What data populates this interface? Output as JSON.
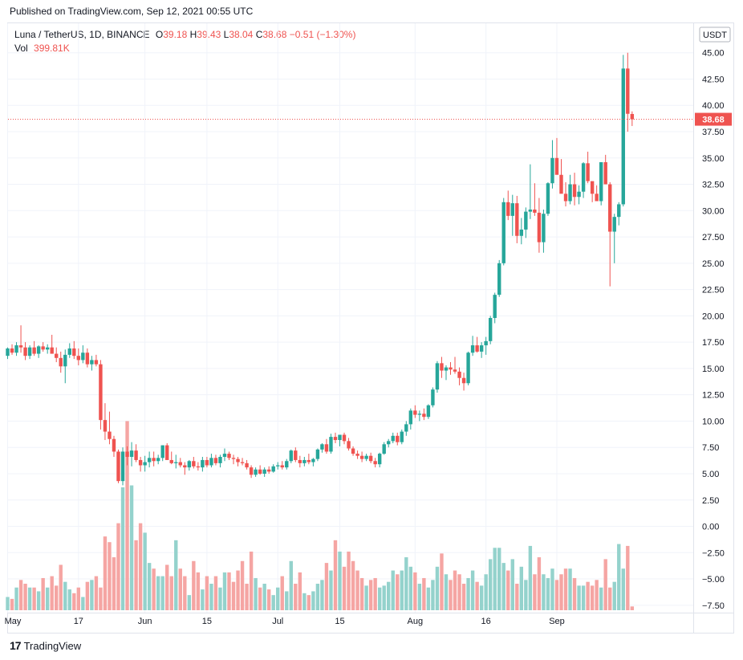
{
  "header": {
    "published": "Published on TradingView.com, Sep 12, 2021 00:55 UTC"
  },
  "legend": {
    "symbol": "Luna / TetherUS, 1D, BINANCE",
    "o_label": "O",
    "o": "39.18",
    "h_label": "H",
    "h": "39.43",
    "l_label": "L",
    "l": "38.04",
    "c_label": "C",
    "c": "38.68",
    "change": "−0.51 (−1.30%)",
    "vol_label": "Vol",
    "vol": "399.81K"
  },
  "footer": {
    "logo": "17",
    "brand": "TradingView"
  },
  "colors": {
    "up": "#26a69a",
    "down": "#ef5350",
    "vol_up": "#94d2cc",
    "vol_down": "#f5a5a3"
  },
  "chart_data": {
    "type": "candlestick",
    "currency_badge": "USDT",
    "last_price": "38.68",
    "y_ticks": [
      "45.00",
      "42.50",
      "40.00",
      "37.50",
      "35.00",
      "32.50",
      "30.00",
      "27.50",
      "25.00",
      "22.50",
      "20.00",
      "17.50",
      "15.00",
      "12.50",
      "10.00",
      "7.50",
      "5.00",
      "2.50",
      "0.00",
      "−2.50",
      "−5.00",
      "−7.50"
    ],
    "y_tick_values": [
      45,
      42.5,
      40,
      37.5,
      35,
      32.5,
      30,
      27.5,
      25,
      22.5,
      20,
      17.5,
      15,
      12.5,
      10,
      7.5,
      5,
      2.5,
      0,
      -2.5,
      -5,
      -7.5
    ],
    "y_range": [
      -8.2,
      47.8
    ],
    "x_labels": [
      {
        "label": "May",
        "day": 0
      },
      {
        "label": "17",
        "day": 16
      },
      {
        "label": "Jun",
        "day": 31
      },
      {
        "label": "15",
        "day": 45
      },
      {
        "label": "Jul",
        "day": 61
      },
      {
        "label": "15",
        "day": 75
      },
      {
        "label": "Aug",
        "day": 92
      },
      {
        "label": "16",
        "day": 108
      },
      {
        "label": "Sep",
        "day": 124
      }
    ],
    "candles": [
      [
        16.2,
        17.0,
        15.9,
        16.9
      ],
      [
        16.9,
        17.3,
        16.3,
        16.5
      ],
      [
        16.5,
        17.5,
        16.2,
        17.2
      ],
      [
        17.2,
        19.1,
        16.5,
        17.0
      ],
      [
        17.0,
        17.5,
        15.8,
        16.2
      ],
      [
        16.2,
        17.2,
        15.9,
        17.0
      ],
      [
        17.0,
        17.6,
        16.2,
        16.4
      ],
      [
        16.4,
        17.2,
        16.0,
        17.1
      ],
      [
        17.1,
        17.5,
        16.6,
        16.8
      ],
      [
        16.8,
        17.3,
        16.4,
        17.0
      ],
      [
        17.0,
        18.2,
        16.5,
        16.4
      ],
      [
        16.4,
        17.0,
        15.6,
        16.0
      ],
      [
        16.0,
        16.6,
        14.6,
        15.2
      ],
      [
        15.2,
        16.8,
        13.6,
        16.3
      ],
      [
        16.3,
        17.4,
        16.0,
        16.9
      ],
      [
        16.9,
        17.6,
        15.9,
        16.2
      ],
      [
        16.2,
        16.9,
        15.3,
        15.8
      ],
      [
        15.8,
        17.2,
        15.5,
        16.5
      ],
      [
        16.5,
        16.9,
        15.1,
        15.4
      ],
      [
        15.4,
        16.2,
        14.8,
        15.8
      ],
      [
        15.8,
        16.3,
        15.2,
        15.4
      ],
      [
        15.4,
        15.8,
        9.2,
        10.1
      ],
      [
        10.1,
        11.7,
        8.2,
        9.0
      ],
      [
        9.0,
        10.9,
        7.8,
        8.3
      ],
      [
        8.3,
        8.6,
        6.6,
        7.1
      ],
      [
        7.1,
        7.3,
        4.1,
        4.3
      ],
      [
        4.3,
        7.5,
        3.9,
        7.1
      ],
      [
        7.1,
        7.6,
        5.8,
        6.6
      ],
      [
        6.6,
        8.0,
        5.7,
        7.2
      ],
      [
        7.2,
        7.8,
        6.1,
        6.3
      ],
      [
        6.3,
        6.6,
        5.2,
        5.8
      ],
      [
        5.8,
        6.7,
        5.2,
        6.1
      ],
      [
        6.1,
        7.1,
        5.6,
        6.5
      ],
      [
        6.5,
        7.1,
        5.7,
        6.2
      ],
      [
        6.2,
        6.8,
        5.9,
        6.5
      ],
      [
        6.5,
        7.7,
        6.2,
        7.7
      ],
      [
        7.7,
        7.9,
        6.5,
        6.3
      ],
      [
        6.3,
        7.1,
        5.9,
        6.0
      ],
      [
        6.0,
        6.8,
        5.5,
        6.1
      ],
      [
        6.1,
        6.5,
        5.6,
        5.8
      ],
      [
        5.8,
        6.1,
        4.9,
        5.6
      ],
      [
        5.6,
        6.3,
        5.3,
        6.2
      ],
      [
        6.2,
        6.6,
        5.5,
        5.7
      ],
      [
        5.7,
        6.1,
        5.3,
        5.6
      ],
      [
        5.6,
        6.6,
        5.2,
        6.3
      ],
      [
        6.3,
        6.6,
        5.6,
        5.8
      ],
      [
        5.8,
        6.9,
        5.6,
        6.5
      ],
      [
        6.5,
        6.8,
        5.8,
        6.0
      ],
      [
        6.0,
        6.8,
        5.6,
        6.6
      ],
      [
        6.6,
        7.4,
        6.2,
        6.9
      ],
      [
        6.9,
        7.1,
        6.3,
        6.5
      ],
      [
        6.5,
        6.8,
        5.9,
        6.4
      ],
      [
        6.4,
        6.6,
        5.7,
        6.1
      ],
      [
        6.1,
        6.5,
        5.8,
        6.0
      ],
      [
        6.0,
        6.3,
        5.4,
        5.6
      ],
      [
        5.6,
        5.8,
        4.6,
        4.9
      ],
      [
        4.9,
        5.6,
        4.7,
        5.4
      ],
      [
        5.4,
        5.8,
        4.9,
        5.0
      ],
      [
        5.0,
        5.6,
        4.7,
        5.4
      ],
      [
        5.4,
        5.7,
        5.0,
        5.2
      ],
      [
        5.2,
        5.9,
        5.1,
        5.7
      ],
      [
        5.7,
        6.1,
        5.4,
        5.8
      ],
      [
        5.8,
        6.2,
        5.4,
        5.6
      ],
      [
        5.6,
        6.4,
        5.4,
        6.2
      ],
      [
        6.2,
        7.3,
        6.0,
        7.2
      ],
      [
        7.2,
        7.5,
        6.1,
        6.3
      ],
      [
        6.3,
        6.7,
        5.6,
        6.0
      ],
      [
        6.0,
        6.6,
        5.7,
        6.3
      ],
      [
        6.3,
        6.9,
        5.9,
        6.1
      ],
      [
        6.1,
        6.5,
        5.7,
        6.4
      ],
      [
        6.4,
        7.4,
        6.2,
        7.3
      ],
      [
        7.3,
        7.9,
        7.0,
        7.8
      ],
      [
        7.8,
        8.3,
        6.9,
        7.1
      ],
      [
        7.1,
        8.8,
        6.9,
        8.5
      ],
      [
        8.5,
        8.9,
        7.9,
        8.2
      ],
      [
        8.2,
        8.7,
        7.6,
        8.7
      ],
      [
        8.7,
        8.9,
        7.8,
        8.1
      ],
      [
        8.1,
        8.4,
        7.2,
        7.4
      ],
      [
        7.4,
        7.6,
        6.7,
        6.9
      ],
      [
        6.9,
        7.2,
        6.4,
        6.7
      ],
      [
        6.7,
        7.1,
        6.1,
        6.4
      ],
      [
        6.4,
        6.9,
        6.2,
        6.7
      ],
      [
        6.7,
        7.0,
        6.0,
        6.2
      ],
      [
        6.2,
        6.5,
        5.6,
        5.9
      ],
      [
        5.9,
        7.0,
        5.6,
        6.9
      ],
      [
        6.9,
        8.0,
        6.8,
        7.8
      ],
      [
        7.8,
        8.3,
        7.5,
        8.1
      ],
      [
        8.1,
        8.9,
        7.9,
        8.6
      ],
      [
        8.6,
        8.9,
        7.7,
        8.0
      ],
      [
        8.0,
        9.2,
        7.8,
        9.0
      ],
      [
        9.0,
        10.0,
        8.6,
        9.7
      ],
      [
        9.7,
        11.2,
        9.2,
        11.0
      ],
      [
        11.0,
        11.5,
        10.3,
        10.6
      ],
      [
        10.6,
        11.0,
        10.0,
        10.7
      ],
      [
        10.7,
        11.2,
        10.1,
        10.4
      ],
      [
        10.4,
        11.6,
        10.2,
        11.5
      ],
      [
        11.5,
        13.2,
        11.3,
        13.0
      ],
      [
        13.0,
        15.7,
        12.7,
        15.5
      ],
      [
        15.5,
        16.1,
        14.1,
        14.8
      ],
      [
        14.8,
        15.3,
        13.9,
        15.1
      ],
      [
        15.1,
        15.6,
        14.4,
        14.9
      ],
      [
        14.9,
        16.1,
        14.5,
        14.7
      ],
      [
        14.7,
        15.1,
        13.4,
        14.1
      ],
      [
        14.1,
        14.6,
        12.9,
        13.6
      ],
      [
        13.6,
        16.6,
        13.4,
        16.5
      ],
      [
        16.5,
        18.1,
        16.2,
        17.2
      ],
      [
        17.2,
        18.0,
        16.5,
        16.6
      ],
      [
        16.6,
        17.5,
        16.0,
        17.2
      ],
      [
        17.2,
        18.0,
        16.3,
        17.6
      ],
      [
        17.6,
        20.0,
        17.3,
        19.8
      ],
      [
        19.8,
        22.2,
        19.3,
        22.0
      ],
      [
        22.0,
        25.3,
        21.8,
        25.0
      ],
      [
        25.0,
        31.2,
        24.8,
        30.8
      ],
      [
        30.8,
        31.9,
        29.1,
        29.5
      ],
      [
        29.5,
        31.5,
        27.6,
        30.7
      ],
      [
        30.7,
        31.4,
        26.9,
        27.6
      ],
      [
        27.6,
        29.3,
        26.8,
        28.2
      ],
      [
        28.2,
        30.3,
        27.4,
        29.9
      ],
      [
        29.9,
        34.4,
        29.2,
        30.1
      ],
      [
        30.1,
        32.6,
        29.5,
        29.8
      ],
      [
        29.8,
        31.2,
        26.0,
        27.0
      ],
      [
        27.0,
        30.1,
        26.0,
        29.7
      ],
      [
        29.7,
        32.7,
        29.5,
        32.6
      ],
      [
        32.6,
        36.7,
        32.1,
        35.0
      ],
      [
        35.0,
        36.9,
        33.6,
        33.4
      ],
      [
        33.4,
        34.9,
        32.1,
        31.6
      ],
      [
        31.6,
        32.7,
        30.4,
        30.9
      ],
      [
        30.9,
        33.4,
        30.6,
        32.5
      ],
      [
        32.5,
        33.6,
        30.5,
        31.3
      ],
      [
        31.3,
        32.4,
        30.6,
        31.8
      ],
      [
        31.8,
        34.6,
        31.2,
        34.5
      ],
      [
        34.5,
        35.6,
        32.6,
        32.8
      ],
      [
        32.8,
        32.3,
        30.8,
        31.6
      ],
      [
        31.6,
        32.4,
        30.9,
        30.9
      ],
      [
        30.9,
        34.6,
        30.5,
        34.6
      ],
      [
        34.6,
        35.3,
        32.5,
        32.5
      ],
      [
        32.5,
        32.7,
        22.8,
        28.0
      ],
      [
        28.0,
        29.7,
        25.0,
        29.4
      ],
      [
        29.4,
        30.8,
        28.6,
        30.6
      ],
      [
        30.6,
        44.8,
        30.4,
        43.5
      ],
      [
        43.5,
        45.0,
        37.5,
        39.2
      ],
      [
        39.18,
        39.43,
        38.04,
        38.68
      ]
    ],
    "volume_pct": [
      7,
      6,
      12,
      16,
      14,
      12,
      12,
      10,
      17,
      12,
      18,
      13,
      24,
      15,
      11,
      9,
      12,
      7,
      15,
      16,
      18,
      12,
      39,
      36,
      28,
      46,
      65,
      100,
      66,
      37,
      46,
      41,
      25,
      22,
      18,
      18,
      24,
      18,
      37,
      22,
      18,
      8,
      26,
      20,
      11,
      18,
      14,
      18,
      12,
      20,
      20,
      15,
      21,
      26,
      14,
      31,
      17,
      12,
      14,
      11,
      8,
      12,
      18,
      10,
      26,
      14,
      20,
      9,
      8,
      10,
      14,
      16,
      25,
      21,
      37,
      31,
      23,
      31,
      26,
      21,
      17,
      13,
      16,
      17,
      12,
      13,
      15,
      21,
      19,
      21,
      28,
      23,
      20,
      14,
      17,
      12,
      16,
      23,
      30,
      19,
      16,
      21,
      19,
      14,
      17,
      21,
      15,
      13,
      19,
      27,
      33,
      33,
      25,
      21,
      27,
      14,
      23,
      16,
      34,
      19,
      28,
      19,
      17,
      22,
      16,
      19,
      22,
      22,
      17,
      13,
      13,
      15,
      13,
      16,
      12,
      27,
      12,
      15,
      35,
      22,
      34,
      2
    ],
    "volume_ymax": 10.0
  }
}
